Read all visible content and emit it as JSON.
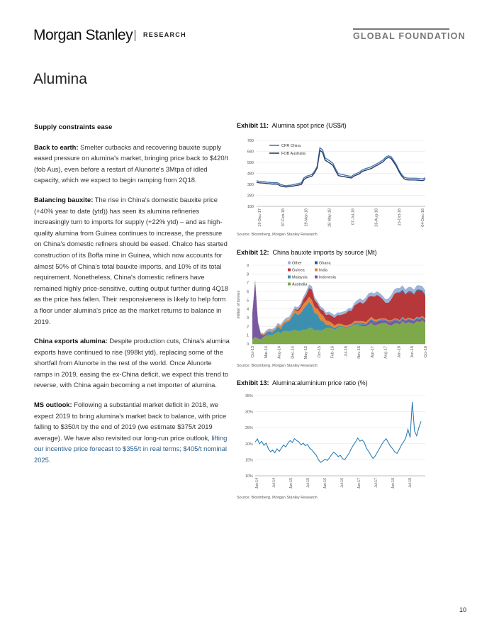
{
  "header": {
    "logo": "Morgan Stanley",
    "section": "RESEARCH",
    "series": "GLOBAL FOUNDATION"
  },
  "page_title": "Alumina",
  "page_number": "10",
  "text": {
    "heading": "Supply constraints ease",
    "p1_lead": "Back to earth:",
    "p1_body": " Smelter cutbacks and recovering bauxite supply eased pressure on alumina's market, bringing price back to $420/t (fob Aus), even before a restart of Alunorte's 3Mtpa of idled capacity, which we expect to begin ramping from 2Q18.",
    "p2_lead": "Balancing bauxite:",
    "p2_body": " The rise in China's domestic bauxite price (+40% year to date (ytd)) has seen its alumina refineries increasingly turn to imports for supply (+22% ytd) – and as high-quality alumina from Guinea continues to increase, the pressure on China's domestic refiners should be eased. Chalco has started construction of its Boffa mine in Guinea, which now accounts for almost 50% of China's total bauxite imports, and 10% of its total requirement. Nonetheless, China's domestic refiners have remained highly price-sensitive, cutting output further during 4Q18 as the price has fallen. Their responsiveness is likely to help form a floor under alumina's price as the market returns to balance in 2019.",
    "p3_lead": "China exports alumina:",
    "p3_body": " Despite production cuts, China's alumina exports have continued to rise (998kt ytd), replacing some of the shortfall from Alunorte in the rest of the world. Once Alunorte ramps in 2019, easing the ex-China deficit, we expect this trend to reverse, with China again becoming a net importer of alumina.",
    "p4_lead": "MS outlook:",
    "p4_body": " Following a substantial market deficit in 2018, we expect 2019 to bring alumina's market back to balance, with price falling to $350/t by the end of 2019 (we estimate $375/t 2019 average). We have also revisited our long-run price outlook, ",
    "p4_link": "lifting our incentive price forecast to $355/t in real terms; $405/t nominal 2025."
  },
  "source_note": "Source: Bloomberg, Morgan Stanley Research",
  "chart_data": [
    {
      "type": "line",
      "exhibit": "Exhibit 11:",
      "title": "Alumina spot price (US$/t)",
      "ylim": [
        180,
        780
      ],
      "yticks": [
        180,
        280,
        380,
        480,
        580,
        680,
        780
      ],
      "x_tick_labels": [
        "19-Dec-17",
        "07-Feb-18",
        "29-Mar-18",
        "18-May-18",
        "07-Jul-18",
        "26-Aug-18",
        "15-Oct-18",
        "04-Dec-18"
      ],
      "colors": {
        "cfr": "#4a78b2",
        "fob": "#2a3f66"
      },
      "series": [
        {
          "name": "CFR China",
          "values": [
            412,
            408,
            405,
            404,
            400,
            398,
            395,
            396,
            394,
            380,
            372,
            368,
            370,
            372,
            378,
            384,
            388,
            395,
            440,
            455,
            462,
            470,
            500,
            545,
            712,
            695,
            620,
            605,
            590,
            570,
            520,
            478,
            472,
            468,
            460,
            456,
            452,
            470,
            480,
            490,
            510,
            520,
            528,
            535,
            545,
            560,
            572,
            588,
            602,
            628,
            640,
            632,
            598,
            560,
            510,
            472,
            445,
            438,
            436,
            436,
            436,
            435,
            432,
            430,
            440
          ]
        },
        {
          "name": "FOB Australia",
          "values": [
            398,
            394,
            392,
            391,
            388,
            385,
            382,
            383,
            381,
            366,
            360,
            356,
            358,
            360,
            365,
            370,
            374,
            380,
            425,
            440,
            448,
            455,
            486,
            530,
            690,
            672,
            600,
            585,
            570,
            550,
            502,
            460,
            455,
            452,
            446,
            442,
            438,
            456,
            466,
            476,
            496,
            505,
            512,
            520,
            530,
            545,
            557,
            572,
            585,
            612,
            625,
            617,
            582,
            545,
            496,
            458,
            430,
            422,
            420,
            420,
            420,
            419,
            416,
            414,
            425
          ]
        }
      ]
    },
    {
      "type": "area",
      "exhibit": "Exhibit 12:",
      "title": "China bauxite imports by source (Mt)",
      "ylabel": "million of tonnes",
      "ylim": [
        0,
        9
      ],
      "yticks": [
        0,
        1,
        2,
        3,
        4,
        5,
        6,
        7,
        8,
        9
      ],
      "x_tick_labels": [
        "Oct-13",
        "Mar-14",
        "Aug-14",
        "Dec-14",
        "May-15",
        "Oct-15",
        "Feb-16",
        "Jul-16",
        "Nov-16",
        "Apr-17",
        "Aug-17",
        "Jan-18",
        "Jun-18",
        "Oct-18"
      ],
      "legend": [
        "Other",
        "Ghana",
        "Guinea",
        "India",
        "Malaysia",
        "Indonesia",
        "Australia"
      ],
      "colors": {
        "Australia": "#7ea94a",
        "Indonesia": "#7a58a0",
        "Malaysia": "#3d8fb0",
        "India": "#e2863a",
        "Guinea": "#b7383b",
        "Ghana": "#2a5a9a",
        "Other": "#9db4d8"
      },
      "series": [
        {
          "name": "Australia",
          "values": [
            0.5,
            0.8,
            0.6,
            0.5,
            0.8,
            1.0,
            1.0,
            1.0,
            1.2,
            1.4,
            1.2,
            1.5,
            1.5,
            1.4,
            1.5,
            1.6,
            1.5,
            1.5,
            1.6,
            1.6,
            1.8,
            1.8,
            1.5,
            1.6,
            1.5,
            1.6,
            1.8,
            1.8,
            1.8,
            1.6,
            1.8,
            2.0,
            1.9,
            1.8,
            1.9,
            2.0,
            2.2,
            2.2,
            2.1,
            2.0,
            2.0,
            2.2,
            2.4,
            2.1,
            2.2,
            2.3,
            2.4,
            2.4,
            2.2,
            2.1,
            2.3,
            2.4,
            2.2,
            2.6,
            2.3,
            2.5,
            2.4,
            2.3,
            2.6,
            2.5,
            2.7,
            2.4
          ]
        },
        {
          "name": "Indonesia",
          "values": [
            3.0,
            6.4,
            1.8,
            0.6,
            0.2,
            0.1,
            0.05,
            0,
            0,
            0,
            0,
            0,
            0,
            0,
            0,
            0,
            0,
            0,
            0,
            0,
            0,
            0,
            0,
            0,
            0,
            0,
            0,
            0,
            0,
            0,
            0,
            0,
            0,
            0,
            0,
            0,
            0,
            0,
            0.1,
            0.2,
            0.2,
            0.3,
            0.4,
            0.3,
            0.3,
            0.4,
            0.3,
            0.3,
            0.3,
            0.4,
            0.4,
            0.3,
            0.3,
            0.3,
            0.3,
            0.3,
            0.3,
            0.3,
            0.3,
            0.3,
            0.3,
            0.3
          ]
        },
        {
          "name": "Malaysia",
          "values": [
            0,
            0,
            0,
            0,
            0,
            0.2,
            0.4,
            0.3,
            0.4,
            0.6,
            0.5,
            0.8,
            1.0,
            1.2,
            1.6,
            2.0,
            1.8,
            2.0,
            2.4,
            2.8,
            3.0,
            2.6,
            2.0,
            1.8,
            1.2,
            1.0,
            0.4,
            0.4,
            0.2,
            0.2,
            0.2,
            0.1,
            0.1,
            0.1,
            0.1,
            0.1,
            0.2,
            0.2,
            0.2,
            0.2,
            0.1,
            0.1,
            0.1,
            0.2,
            0.1,
            0.1,
            0.1,
            0.1,
            0.1,
            0.1,
            0.1,
            0.1,
            0.1,
            0.1,
            0.1,
            0.1,
            0.1,
            0.1,
            0.1,
            0.1,
            0.1,
            0.1
          ]
        },
        {
          "name": "India",
          "values": [
            0.1,
            0.1,
            0.1,
            0.1,
            0.1,
            0.1,
            0.1,
            0.2,
            0.1,
            0.2,
            0.3,
            0.2,
            0.2,
            0.2,
            0.3,
            0.3,
            0.4,
            0.5,
            0.6,
            0.5,
            0.6,
            0.6,
            0.7,
            0.6,
            0.8,
            0.6,
            0.5,
            0.4,
            0.4,
            0.3,
            0.3,
            0.2,
            0.2,
            0.2,
            0.2,
            0.2,
            0.2,
            0.2,
            0.2,
            0.2,
            0.2,
            0.2,
            0.2,
            0.2,
            0.2,
            0.1,
            0.1,
            0.1,
            0.1,
            0.1,
            0.1,
            0.1,
            0.1,
            0.1,
            0.1,
            0.1,
            0.1,
            0.1,
            0.1,
            0.1,
            0.1,
            0.1
          ]
        },
        {
          "name": "Guinea",
          "values": [
            0,
            0,
            0,
            0,
            0,
            0,
            0,
            0,
            0,
            0,
            0,
            0,
            0,
            0,
            0,
            0.1,
            0.2,
            0.3,
            0.5,
            0.7,
            1.0,
            1.2,
            0.8,
            0.6,
            0.5,
            0.6,
            0.6,
            0.8,
            0.8,
            0.9,
            1.0,
            1.0,
            1.2,
            1.4,
            1.6,
            1.5,
            1.8,
            2.0,
            2.2,
            2.0,
            2.4,
            2.6,
            2.4,
            2.6,
            2.8,
            2.5,
            2.2,
            1.8,
            2.0,
            2.4,
            2.8,
            3.0,
            3.1,
            3.0,
            2.8,
            2.9,
            3.0,
            2.8,
            3.0,
            3.1,
            2.8,
            2.6
          ]
        },
        {
          "name": "Ghana",
          "values": [
            0,
            0,
            0,
            0,
            0,
            0,
            0,
            0,
            0,
            0,
            0,
            0,
            0,
            0,
            0,
            0,
            0,
            0,
            0,
            0,
            0,
            0,
            0,
            0,
            0,
            0,
            0,
            0,
            0,
            0,
            0,
            0,
            0,
            0,
            0,
            0,
            0,
            0,
            0,
            0,
            0,
            0,
            0,
            0,
            0,
            0,
            0,
            0,
            0,
            0,
            0,
            0,
            0.1,
            0.1,
            0.1,
            0.1,
            0.1,
            0.1,
            0.1,
            0.1,
            0.1,
            0.1
          ]
        },
        {
          "name": "Other",
          "values": [
            0.1,
            0.1,
            0.1,
            0.1,
            0.1,
            0.2,
            0.2,
            0.2,
            0.2,
            0.2,
            0.2,
            0.2,
            0.3,
            0.3,
            0.3,
            0.3,
            0.3,
            0.3,
            0.3,
            0.4,
            0.4,
            0.4,
            0.3,
            0.3,
            0.3,
            0.3,
            0.3,
            0.3,
            0.3,
            0.3,
            0.3,
            0.3,
            0.3,
            0.3,
            0.3,
            0.3,
            0.3,
            0.4,
            0.4,
            0.4,
            0.4,
            0.4,
            0.4,
            0.4,
            0.4,
            0.4,
            0.4,
            0.4,
            0.5,
            0.5,
            0.5,
            0.5,
            0.5,
            0.5,
            0.5,
            0.5,
            0.5,
            0.5,
            0.5,
            0.5,
            0.5,
            0.5
          ]
        }
      ]
    },
    {
      "type": "line",
      "exhibit": "Exhibit 13:",
      "title": "Alumina:aluminium price ratio (%)",
      "ylim": [
        10,
        35
      ],
      "yticks": [
        "10%",
        "15%",
        "20%",
        "25%",
        "30%",
        "35%"
      ],
      "x_tick_labels": [
        "Jan-14",
        "Jul-14",
        "Jan-15",
        "Jul-15",
        "Jan-16",
        "Jul-16",
        "Jan-17",
        "Jul-17",
        "Jan-18",
        "Jul-18"
      ],
      "color": "#2f7fb5",
      "series": [
        {
          "name": "",
          "values": [
            20.5,
            21.5,
            20.0,
            20.8,
            19.5,
            20.2,
            18.5,
            17.5,
            18.0,
            17.2,
            18.4,
            17.6,
            18.6,
            19.6,
            19.0,
            20.2,
            21.0,
            20.4,
            21.6,
            21.0,
            20.6,
            19.6,
            20.2,
            19.4,
            19.8,
            18.6,
            18.0,
            17.2,
            16.4,
            15.0,
            14.2,
            14.6,
            15.2,
            14.8,
            15.6,
            16.6,
            17.4,
            16.8,
            16.0,
            16.4,
            15.4,
            15.0,
            16.0,
            17.0,
            18.4,
            19.6,
            20.6,
            21.8,
            20.8,
            21.2,
            20.4,
            18.6,
            17.6,
            16.4,
            15.4,
            16.2,
            17.4,
            18.6,
            19.8,
            20.8,
            21.6,
            20.4,
            19.2,
            18.4,
            17.4,
            17.0,
            18.2,
            19.6,
            20.6,
            21.8,
            24.5,
            22.0,
            33.0,
            24.0,
            22.5,
            25.0,
            27.0
          ]
        }
      ]
    }
  ]
}
